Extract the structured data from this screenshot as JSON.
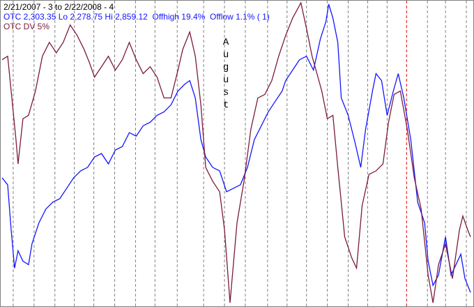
{
  "chart_data": {
    "type": "line",
    "title": "2/21/2007 - 3 to 2/22/2008 - 4",
    "annotation": "August",
    "annotation_x": 325,
    "xlim": [
      0,
      680
    ],
    "ylim": [
      0,
      440
    ],
    "xticks": [
      18,
      48,
      78,
      106,
      134,
      164,
      194,
      222,
      254,
      292,
      322,
      352,
      384,
      412,
      440,
      470,
      500,
      528,
      556,
      614,
      640,
      670
    ],
    "grid_color": "#808080",
    "highlight_line": {
      "x": 584,
      "color": "#e00000"
    },
    "series": [
      {
        "name": "OTC 2,303.35 Lo 2,278.75 Hi 2,859.12  Offhigh 19.4%  Offlow 1.1% ( 1)",
        "color": "#1414ff",
        "x": [
          2,
          10,
          15,
          20,
          25,
          32,
          40,
          45,
          55,
          65,
          75,
          85,
          95,
          105,
          115,
          125,
          135,
          145,
          155,
          165,
          175,
          185,
          195,
          205,
          215,
          225,
          235,
          245,
          255,
          265,
          272,
          280,
          288,
          295,
          305,
          315,
          325,
          335,
          345,
          355,
          365,
          375,
          385,
          395,
          405,
          410,
          420,
          430,
          440,
          450,
          460,
          468,
          472,
          478,
          485,
          490,
          500,
          510,
          518,
          525,
          535,
          540,
          548,
          556,
          565,
          572,
          580,
          590,
          600,
          610,
          615,
          622,
          630,
          640,
          648,
          655,
          662,
          668,
          676
        ],
        "values": [
          185,
          175,
          110,
          55,
          80,
          65,
          60,
          90,
          120,
          140,
          150,
          155,
          170,
          185,
          195,
          200,
          215,
          220,
          205,
          225,
          230,
          250,
          245,
          260,
          265,
          275,
          280,
          290,
          310,
          320,
          325,
          300,
          240,
          215,
          200,
          195,
          165,
          170,
          175,
          200,
          240,
          260,
          280,
          295,
          310,
          325,
          340,
          355,
          360,
          340,
          385,
          410,
          435,
          415,
          380,
          300,
          275,
          235,
          200,
          255,
          310,
          335,
          325,
          275,
          310,
          335,
          300,
          240,
          150,
          120,
          65,
          30,
          45,
          100,
          45,
          60,
          75,
          40,
          20
        ]
      },
      {
        "name": "OTC DV 5%",
        "color": "#7a1a3a",
        "x": [
          2,
          10,
          16,
          22,
          25,
          32,
          40,
          50,
          60,
          70,
          80,
          90,
          100,
          110,
          120,
          128,
          135,
          145,
          155,
          165,
          175,
          185,
          195,
          205,
          215,
          225,
          235,
          245,
          255,
          262,
          272,
          280,
          288,
          295,
          305,
          315,
          322,
          330,
          340,
          350,
          360,
          370,
          380,
          390,
          400,
          410,
          420,
          432,
          440,
          448,
          455,
          462,
          470,
          478,
          485,
          495,
          505,
          512,
          520,
          530,
          540,
          550,
          558,
          566,
          575,
          585,
          595,
          605,
          615,
          622,
          630,
          640,
          650,
          660,
          665,
          672,
          676
        ],
        "values": [
          355,
          360,
          300,
          240,
          205,
          270,
          275,
          310,
          360,
          380,
          365,
          380,
          405,
          390,
          370,
          350,
          330,
          345,
          360,
          340,
          355,
          380,
          355,
          335,
          345,
          330,
          300,
          300,
          340,
          370,
          395,
          360,
          290,
          200,
          180,
          165,
          110,
          5,
          120,
          180,
          255,
          300,
          305,
          325,
          360,
          390,
          415,
          437,
          400,
          360,
          335,
          310,
          270,
          275,
          200,
          100,
          70,
          55,
          145,
          190,
          195,
          205,
          265,
          305,
          310,
          255,
          185,
          140,
          45,
          5,
          60,
          90,
          40,
          110,
          130,
          110,
          100
        ]
      }
    ]
  }
}
